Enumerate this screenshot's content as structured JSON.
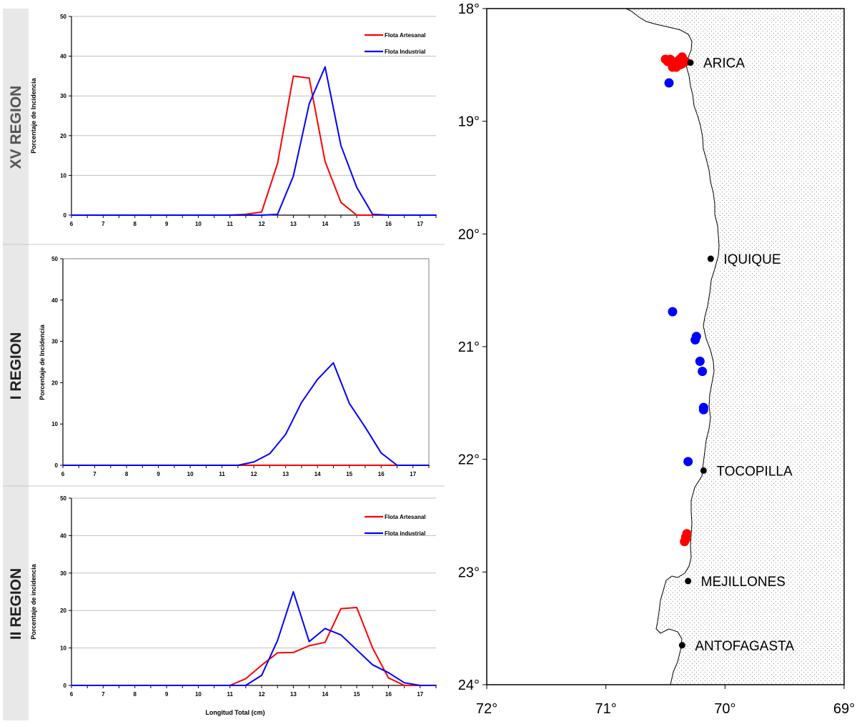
{
  "colors": {
    "artesanal": "#ff0000",
    "industrial": "#0000ff",
    "axis": "#000000",
    "grid": "#bfbfbf",
    "label_band": "#d9d9d9"
  },
  "panels": [
    {
      "region_label": "XV REGION",
      "ylabel": "Porcentaje de Incidencia",
      "xlabel": "",
      "legend": [
        "Flota Artesanal",
        "Flota Industrial"
      ]
    },
    {
      "region_label": "I REGION",
      "ylabel": "Porcentaje de Incidencia",
      "xlabel": "",
      "legend": []
    },
    {
      "region_label": "II REGION",
      "ylabel": "Porcentaje de incidencia",
      "xlabel": "Longitud Total (cm)",
      "legend": [
        "Flota Artesanal",
        "Flota industrial"
      ]
    }
  ],
  "chart_data": [
    {
      "type": "line",
      "title": "",
      "xlabel": "",
      "ylabel": "Porcentaje de Incidencia",
      "xlim": [
        6,
        17.5
      ],
      "ylim": [
        0,
        50
      ],
      "xticks": [
        "6",
        "7",
        "8",
        "9",
        "10",
        "11",
        "12",
        "13",
        "14",
        "15",
        "16",
        "17"
      ],
      "yticks": [
        "0",
        "10",
        "20",
        "30",
        "40",
        "50"
      ],
      "grid": true,
      "legend_position": "top-right",
      "x": [
        6,
        6.5,
        7,
        7.5,
        8,
        8.5,
        9,
        9.5,
        10,
        10.5,
        11,
        11.5,
        12,
        12.5,
        13,
        13.5,
        14,
        14.5,
        15,
        15.5,
        16,
        16.5,
        17,
        17.5
      ],
      "series": [
        {
          "name": "Flota Artesanal",
          "color": "#ff0000",
          "values": [
            0,
            0,
            0,
            0,
            0,
            0,
            0,
            0,
            0,
            0,
            0,
            0.2,
            0.8,
            13,
            35,
            34.5,
            13.5,
            3.2,
            0,
            0,
            0,
            0,
            0,
            0
          ]
        },
        {
          "name": "Flota Industrial",
          "color": "#0000ff",
          "values": [
            0,
            0,
            0,
            0,
            0,
            0,
            0,
            0,
            0,
            0,
            0,
            0,
            0,
            0.2,
            9.8,
            28,
            37.3,
            17.5,
            7,
            0.2,
            0,
            0,
            0,
            0
          ]
        }
      ]
    },
    {
      "type": "line",
      "title": "",
      "xlabel": "",
      "ylabel": "Porcentaje de Incidencia",
      "xlim": [
        6,
        17.5
      ],
      "ylim": [
        0,
        50
      ],
      "xticks": [
        "6",
        "7",
        "8",
        "9",
        "10",
        "11",
        "12",
        "13",
        "14",
        "15",
        "16",
        "17"
      ],
      "yticks": [
        "0",
        "10",
        "20",
        "30",
        "40",
        "50"
      ],
      "grid": false,
      "legend_position": "none",
      "x": [
        6,
        6.5,
        7,
        7.5,
        8,
        8.5,
        9,
        9.5,
        10,
        10.5,
        11,
        11.5,
        12,
        12.5,
        13,
        13.5,
        14,
        14.5,
        15,
        15.5,
        16,
        16.5,
        17,
        17.5
      ],
      "series": [
        {
          "color": "#ff0000",
          "values": [
            0,
            0,
            0,
            0,
            0,
            0,
            0,
            0,
            0,
            0,
            0,
            0,
            0,
            0,
            0,
            0,
            0,
            0,
            0,
            0,
            0,
            0,
            0,
            0
          ]
        },
        {
          "color": "#0000ff",
          "values": [
            0,
            0,
            0,
            0,
            0,
            0,
            0,
            0,
            0,
            0,
            0,
            0,
            0.8,
            2.8,
            7.5,
            15.2,
            20.8,
            24.8,
            15,
            9.2,
            3,
            0,
            0,
            0
          ]
        }
      ]
    },
    {
      "type": "line",
      "title": "",
      "xlabel": "Longitud Total (cm)",
      "ylabel": "Porcentaje de incidencia",
      "xlim": [
        6,
        17.5
      ],
      "ylim": [
        0,
        50
      ],
      "xticks": [
        "6",
        "7",
        "8",
        "9",
        "10",
        "11",
        "12",
        "13",
        "14",
        "15",
        "16",
        "17"
      ],
      "yticks": [
        "0",
        "10",
        "20",
        "30",
        "40",
        "50"
      ],
      "grid": true,
      "legend_position": "top-right",
      "x": [
        6,
        6.5,
        7,
        7.5,
        8,
        8.5,
        9,
        9.5,
        10,
        10.5,
        11,
        11.5,
        12,
        12.5,
        13,
        13.5,
        14,
        14.5,
        15,
        15.5,
        16,
        16.5,
        17,
        17.5
      ],
      "series": [
        {
          "name": "Flota Artesanal",
          "color": "#ff0000",
          "values": [
            0,
            0,
            0,
            0,
            0,
            0,
            0,
            0,
            0,
            0,
            0,
            1.8,
            5.4,
            8.7,
            8.8,
            10.6,
            11.5,
            20.5,
            20.8,
            10,
            2,
            0,
            0,
            0
          ]
        },
        {
          "name": "Flota industrial",
          "color": "#0000ff",
          "values": [
            0,
            0,
            0,
            0,
            0,
            0,
            0,
            0,
            0,
            0,
            0,
            0,
            2.7,
            12,
            25,
            11.7,
            15.2,
            13.5,
            9.5,
            5.5,
            3.4,
            0.7,
            0,
            0
          ]
        }
      ]
    }
  ],
  "map": {
    "lat_labels": [
      "18°",
      "19°",
      "20°",
      "21°",
      "22°",
      "23°",
      "24°"
    ],
    "lon_labels": [
      "72°",
      "71°",
      "70°",
      "69°"
    ],
    "lat_ticks": [
      18,
      19,
      20,
      21,
      22,
      23,
      24
    ],
    "lon_ticks": [
      72,
      71,
      70,
      69
    ],
    "lat_range": [
      18,
      24
    ],
    "lon_range": [
      72,
      69
    ],
    "cities": [
      {
        "name": "ARICA",
        "lon": 70.29,
        "lat": 18.48
      },
      {
        "name": "IQUIQUE",
        "lon": 70.12,
        "lat": 20.22
      },
      {
        "name": "TOCOPILLA",
        "lon": 70.18,
        "lat": 22.1
      },
      {
        "name": "MEJILLONES",
        "lon": 70.31,
        "lat": 23.08
      },
      {
        "name": "ANTOFAGASTA",
        "lon": 70.36,
        "lat": 23.65
      }
    ],
    "catches_artesanal": [
      {
        "lon": 70.5,
        "lat": 18.45
      },
      {
        "lon": 70.48,
        "lat": 18.47
      },
      {
        "lon": 70.46,
        "lat": 18.45
      },
      {
        "lon": 70.44,
        "lat": 18.47
      },
      {
        "lon": 70.42,
        "lat": 18.49
      },
      {
        "lon": 70.4,
        "lat": 18.47
      },
      {
        "lon": 70.38,
        "lat": 18.45
      },
      {
        "lon": 70.36,
        "lat": 18.43
      },
      {
        "lon": 70.35,
        "lat": 18.46
      },
      {
        "lon": 70.33,
        "lat": 18.47
      },
      {
        "lon": 70.38,
        "lat": 18.5
      },
      {
        "lon": 70.41,
        "lat": 18.52
      },
      {
        "lon": 70.44,
        "lat": 18.52
      },
      {
        "lon": 70.36,
        "lat": 18.49
      },
      {
        "lon": 70.32,
        "lat": 22.66
      },
      {
        "lon": 70.33,
        "lat": 22.69
      },
      {
        "lon": 70.34,
        "lat": 22.73
      },
      {
        "lon": 70.33,
        "lat": 22.71
      }
    ],
    "catches_industrial": [
      {
        "lon": 70.47,
        "lat": 18.66
      },
      {
        "lon": 70.44,
        "lat": 20.69
      },
      {
        "lon": 70.24,
        "lat": 20.91
      },
      {
        "lon": 70.25,
        "lat": 20.94
      },
      {
        "lon": 70.21,
        "lat": 21.13
      },
      {
        "lon": 70.19,
        "lat": 21.22
      },
      {
        "lon": 70.18,
        "lat": 21.54
      },
      {
        "lon": 70.18,
        "lat": 21.56
      },
      {
        "lon": 70.31,
        "lat": 22.02
      }
    ]
  }
}
